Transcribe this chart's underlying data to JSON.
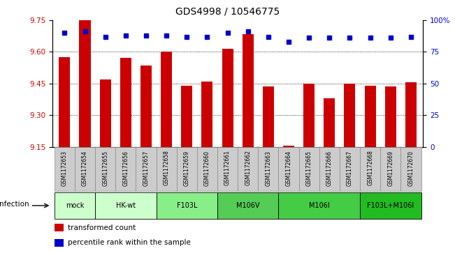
{
  "title": "GDS4998 / 10546775",
  "samples": [
    "GSM1172653",
    "GSM1172654",
    "GSM1172655",
    "GSM1172656",
    "GSM1172657",
    "GSM1172658",
    "GSM1172659",
    "GSM1172660",
    "GSM1172661",
    "GSM1172662",
    "GSM1172663",
    "GSM1172664",
    "GSM1172665",
    "GSM1172666",
    "GSM1172667",
    "GSM1172668",
    "GSM1172669",
    "GSM1172670"
  ],
  "bar_values": [
    9.575,
    9.75,
    9.47,
    9.57,
    9.535,
    9.6,
    9.44,
    9.46,
    9.615,
    9.685,
    9.435,
    9.155,
    9.45,
    9.38,
    9.45,
    9.44,
    9.435,
    9.455
  ],
  "percentile_values": [
    90,
    91,
    87,
    88,
    88,
    88,
    87,
    87,
    90,
    91,
    87,
    83,
    86,
    86,
    86,
    86,
    86,
    87
  ],
  "ylim_left": [
    9.15,
    9.75
  ],
  "ylim_right": [
    0,
    100
  ],
  "yticks_left": [
    9.15,
    9.3,
    9.45,
    9.6,
    9.75
  ],
  "yticks_right": [
    0,
    25,
    50,
    75,
    100
  ],
  "bar_color": "#cc0000",
  "dot_color": "#0000cc",
  "groups": [
    {
      "label": "mock",
      "start": 0,
      "end": 2,
      "color": "#ccffcc"
    },
    {
      "label": "HK-wt",
      "start": 2,
      "end": 5,
      "color": "#ccffcc"
    },
    {
      "label": "F103L",
      "start": 5,
      "end": 8,
      "color": "#88ee88"
    },
    {
      "label": "M106V",
      "start": 8,
      "end": 11,
      "color": "#55cc55"
    },
    {
      "label": "M106I",
      "start": 11,
      "end": 15,
      "color": "#44cc44"
    },
    {
      "label": "F103L+M106I",
      "start": 15,
      "end": 18,
      "color": "#22bb22"
    }
  ],
  "infection_label": "infection",
  "legend_entries": [
    "transformed count",
    "percentile rank within the sample"
  ],
  "bg_color": "#ffffff",
  "sample_box_color": "#cccccc",
  "sample_box_edge": "#888888"
}
